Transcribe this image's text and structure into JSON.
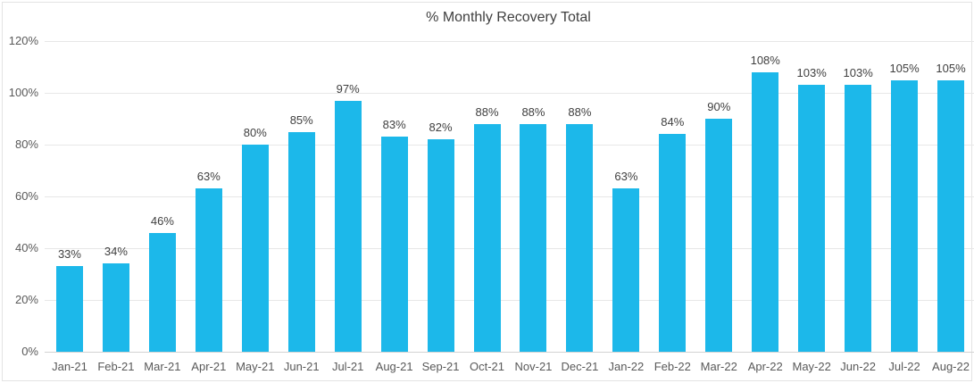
{
  "chart_data": {
    "type": "bar",
    "title": "% Monthly Recovery Total",
    "categories": [
      "Jan-21",
      "Feb-21",
      "Mar-21",
      "Apr-21",
      "May-21",
      "Jun-21",
      "Jul-21",
      "Aug-21",
      "Sep-21",
      "Oct-21",
      "Nov-21",
      "Dec-21",
      "Jan-22",
      "Feb-22",
      "Mar-22",
      "Apr-22",
      "May-22",
      "Jun-22",
      "Jul-22",
      "Aug-22"
    ],
    "values": [
      33,
      34,
      46,
      63,
      80,
      85,
      97,
      83,
      82,
      88,
      88,
      88,
      63,
      84,
      90,
      108,
      103,
      103,
      105,
      105
    ],
    "value_labels": [
      "33%",
      "34%",
      "46%",
      "63%",
      "80%",
      "85%",
      "97%",
      "83%",
      "82%",
      "88%",
      "88%",
      "88%",
      "63%",
      "84%",
      "90%",
      "108%",
      "103%",
      "103%",
      "105%",
      "105%"
    ],
    "xlabel": "",
    "ylabel": "",
    "ylim": [
      0,
      120
    ],
    "ytick_step": 20,
    "yticks": [
      "0%",
      "20%",
      "40%",
      "60%",
      "80%",
      "100%",
      "120%"
    ],
    "grid": true,
    "legend": "none",
    "bar_color": "#1cb8ea",
    "gridline_color": "#e7e7e7",
    "axis_line_color": "#d2d2d2",
    "title_color": "#404040",
    "label_color": "#3f3f3f",
    "tick_color": "#595959"
  }
}
